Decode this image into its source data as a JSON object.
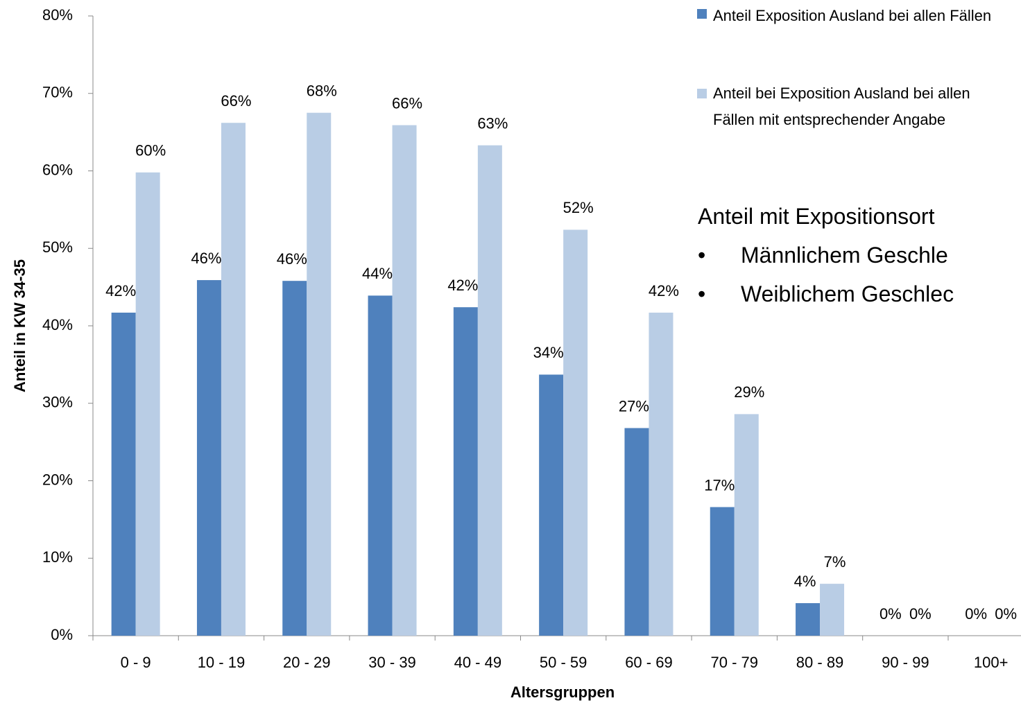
{
  "chart_data": {
    "type": "bar",
    "y_label": "Anteil in KW 34-35",
    "x_label": "Altersgruppen",
    "categories": [
      "0 - 9",
      "10 - 19",
      "20 - 29",
      "30 - 39",
      "40 - 49",
      "50 - 59",
      "60 - 69",
      "70 - 79",
      "80 - 89",
      "90 - 99",
      "100+"
    ],
    "series": [
      {
        "name": "Anteil Exposition Ausland bei allen Fällen",
        "color": "#4f81bd",
        "values": [
          41.7,
          45.9,
          45.8,
          43.9,
          42.4,
          33.7,
          26.8,
          16.6,
          4.2,
          0,
          0
        ],
        "value_labels": [
          "42%",
          "46%",
          "46%",
          "44%",
          "42%",
          "34%",
          "27%",
          "17%",
          "4%",
          "0%",
          "0%"
        ]
      },
      {
        "name": "Anteil bei Exposition Ausland bei allen Fällen mit entsprechender Angabe",
        "color": "#b9cde5",
        "values": [
          59.8,
          66.2,
          67.5,
          65.9,
          63.3,
          52.4,
          41.7,
          28.6,
          6.7,
          0,
          0
        ],
        "value_labels": [
          "60%",
          "66%",
          "68%",
          "66%",
          "63%",
          "52%",
          "42%",
          "29%",
          "7%",
          "0%",
          "0%"
        ]
      }
    ],
    "ylim": [
      0,
      80
    ],
    "yticks": [
      {
        "value": 0,
        "label": "0%"
      },
      {
        "value": 10,
        "label": "10%"
      },
      {
        "value": 20,
        "label": "20%"
      },
      {
        "value": 30,
        "label": "30%"
      },
      {
        "value": 40,
        "label": "40%"
      },
      {
        "value": 50,
        "label": "50%"
      },
      {
        "value": 60,
        "label": "60%"
      },
      {
        "value": 70,
        "label": "70%"
      },
      {
        "value": 80,
        "label": "80%"
      }
    ],
    "legend": "top-right",
    "annotations": [
      "Anteil mit Expositionsort",
      "Männlichem Geschle",
      "Weiblichem Geschlec"
    ]
  }
}
